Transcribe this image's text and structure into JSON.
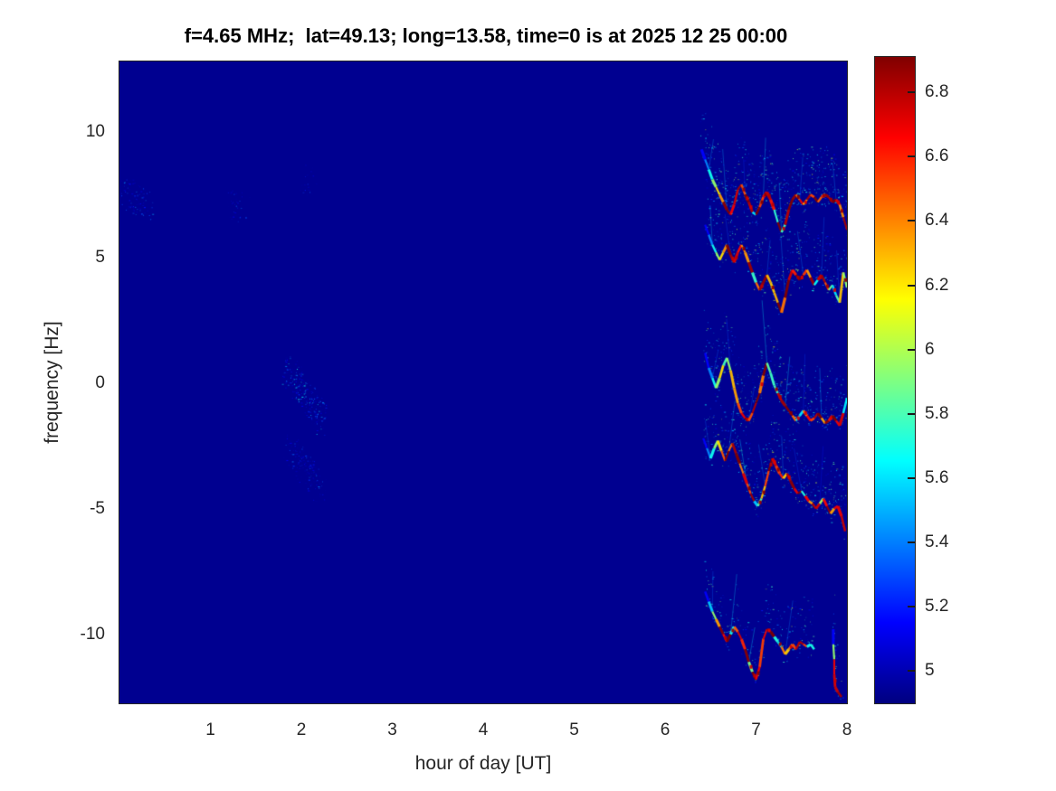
{
  "chart_data": {
    "type": "heatmap",
    "title": "f=4.65 MHz;  lat=49.13; long=13.58, time=0 is at 2025 12 25 00:00",
    "xlabel": "hour of day [UT]",
    "ylabel": "frequency [Hz]",
    "xlim": [
      0,
      8
    ],
    "ylim": [
      -12.75,
      12.8
    ],
    "x_ticks": [
      "1",
      "2",
      "3",
      "4",
      "5",
      "6",
      "7",
      "8"
    ],
    "x_tick_values": [
      1,
      2,
      3,
      4,
      5,
      6,
      7,
      8
    ],
    "y_ticks": [
      "10",
      "5",
      "0",
      "-5",
      "-10"
    ],
    "y_tick_values": [
      10,
      5,
      0,
      -5,
      -10
    ],
    "grid": false,
    "colormap": "jet",
    "background_color": "#000090",
    "background_value": 4.9,
    "colorbar": {
      "position": "right",
      "range": [
        4.9,
        6.91
      ],
      "tick_labels": [
        "5",
        "5.2",
        "5.4",
        "5.6",
        "5.8",
        "6",
        "6.2",
        "6.4",
        "6.6",
        "6.8"
      ],
      "tick_values": [
        5,
        5.2,
        5.4,
        5.6,
        5.8,
        6,
        6.2,
        6.4,
        6.6,
        6.8
      ]
    },
    "traces": [
      {
        "name": "doppler-trace-plus8hz",
        "center_hz": 7.4,
        "halo_density": 16,
        "core_value_range": [
          6.2,
          6.95
        ],
        "points": [
          [
            6.4,
            9.3
          ],
          [
            6.44,
            8.9
          ],
          [
            6.48,
            8.5
          ],
          [
            6.52,
            8.1
          ],
          [
            6.56,
            7.8
          ],
          [
            6.6,
            7.5
          ],
          [
            6.64,
            7.2
          ],
          [
            6.68,
            6.9
          ],
          [
            6.72,
            6.7
          ],
          [
            6.76,
            7.1
          ],
          [
            6.8,
            7.7
          ],
          [
            6.84,
            7.9
          ],
          [
            6.88,
            7.5
          ],
          [
            6.92,
            7.2
          ],
          [
            6.96,
            6.8
          ],
          [
            7.0,
            6.7
          ],
          [
            7.04,
            7.0
          ],
          [
            7.08,
            7.4
          ],
          [
            7.12,
            7.6
          ],
          [
            7.16,
            7.3
          ],
          [
            7.2,
            6.9
          ],
          [
            7.24,
            6.4
          ],
          [
            7.28,
            6.0
          ],
          [
            7.32,
            6.3
          ],
          [
            7.36,
            6.9
          ],
          [
            7.4,
            7.3
          ],
          [
            7.44,
            7.5
          ],
          [
            7.48,
            7.3
          ],
          [
            7.52,
            7.1
          ],
          [
            7.56,
            7.3
          ],
          [
            7.6,
            7.5
          ],
          [
            7.64,
            7.4
          ],
          [
            7.68,
            7.2
          ],
          [
            7.72,
            7.4
          ],
          [
            7.76,
            7.5
          ],
          [
            7.8,
            7.4
          ],
          [
            7.84,
            7.2
          ],
          [
            7.88,
            7.3
          ],
          [
            7.92,
            7.1
          ],
          [
            7.96,
            6.6
          ],
          [
            8.0,
            6.1
          ]
        ]
      },
      {
        "name": "doppler-trace-plus4hz",
        "center_hz": 4.3,
        "halo_density": 12,
        "core_value_range": [
          6.2,
          6.95
        ],
        "points": [
          [
            6.44,
            6.3
          ],
          [
            6.48,
            5.9
          ],
          [
            6.52,
            5.5
          ],
          [
            6.56,
            5.2
          ],
          [
            6.6,
            4.9
          ],
          [
            6.64,
            5.2
          ],
          [
            6.68,
            5.5
          ],
          [
            6.72,
            5.1
          ],
          [
            6.76,
            4.8
          ],
          [
            6.8,
            5.2
          ],
          [
            6.84,
            5.5
          ],
          [
            6.88,
            5.2
          ],
          [
            6.92,
            4.8
          ],
          [
            6.96,
            4.4
          ],
          [
            7.0,
            4.0
          ],
          [
            7.04,
            3.7
          ],
          [
            7.08,
            4.0
          ],
          [
            7.12,
            4.3
          ],
          [
            7.16,
            4.0
          ],
          [
            7.2,
            3.6
          ],
          [
            7.24,
            3.2
          ],
          [
            7.28,
            2.8
          ],
          [
            7.32,
            3.4
          ],
          [
            7.36,
            4.1
          ],
          [
            7.4,
            4.5
          ],
          [
            7.44,
            4.3
          ],
          [
            7.48,
            4.1
          ],
          [
            7.52,
            4.3
          ],
          [
            7.56,
            4.5
          ],
          [
            7.6,
            4.2
          ],
          [
            7.64,
            3.9
          ],
          [
            7.68,
            4.1
          ],
          [
            7.72,
            4.3
          ],
          [
            7.76,
            4.0
          ],
          [
            7.8,
            3.7
          ],
          [
            7.84,
            3.9
          ],
          [
            7.88,
            3.5
          ],
          [
            7.92,
            3.2
          ],
          [
            7.96,
            4.4
          ],
          [
            8.0,
            3.8
          ]
        ]
      },
      {
        "name": "doppler-trace-0hz",
        "center_hz": -0.6,
        "halo_density": 14,
        "core_value_range": [
          6.2,
          6.95
        ],
        "points": [
          [
            6.44,
            1.2
          ],
          [
            6.48,
            0.6
          ],
          [
            6.52,
            0.2
          ],
          [
            6.56,
            -0.2
          ],
          [
            6.6,
            0.2
          ],
          [
            6.64,
            0.7
          ],
          [
            6.68,
            1.0
          ],
          [
            6.72,
            0.5
          ],
          [
            6.76,
            -0.2
          ],
          [
            6.8,
            -0.8
          ],
          [
            6.84,
            -1.2
          ],
          [
            6.88,
            -1.4
          ],
          [
            6.92,
            -1.5
          ],
          [
            6.96,
            -1.2
          ],
          [
            7.0,
            -0.8
          ],
          [
            7.04,
            -0.4
          ],
          [
            7.08,
            0.3
          ],
          [
            7.12,
            0.8
          ],
          [
            7.16,
            0.4
          ],
          [
            7.2,
            -0.1
          ],
          [
            7.24,
            -0.4
          ],
          [
            7.28,
            -0.7
          ],
          [
            7.32,
            -0.9
          ],
          [
            7.36,
            -1.1
          ],
          [
            7.4,
            -1.3
          ],
          [
            7.44,
            -1.5
          ],
          [
            7.48,
            -1.3
          ],
          [
            7.52,
            -1.1
          ],
          [
            7.56,
            -1.3
          ],
          [
            7.6,
            -1.5
          ],
          [
            7.64,
            -1.4
          ],
          [
            7.68,
            -1.2
          ],
          [
            7.72,
            -1.4
          ],
          [
            7.76,
            -1.6
          ],
          [
            7.8,
            -1.5
          ],
          [
            7.84,
            -1.3
          ],
          [
            7.88,
            -1.5
          ],
          [
            7.92,
            -1.7
          ],
          [
            7.96,
            -1.2
          ],
          [
            8.0,
            -0.6
          ]
        ]
      },
      {
        "name": "doppler-trace-minus4hz",
        "center_hz": -3.9,
        "halo_density": 14,
        "core_value_range": [
          6.2,
          6.95
        ],
        "points": [
          [
            6.42,
            -2.2
          ],
          [
            6.46,
            -2.6
          ],
          [
            6.5,
            -3.0
          ],
          [
            6.54,
            -2.6
          ],
          [
            6.58,
            -2.3
          ],
          [
            6.62,
            -2.7
          ],
          [
            6.66,
            -3.1
          ],
          [
            6.7,
            -2.7
          ],
          [
            6.74,
            -2.4
          ],
          [
            6.78,
            -2.8
          ],
          [
            6.82,
            -3.2
          ],
          [
            6.86,
            -3.6
          ],
          [
            6.9,
            -4.0
          ],
          [
            6.94,
            -4.4
          ],
          [
            6.98,
            -4.7
          ],
          [
            7.02,
            -4.9
          ],
          [
            7.06,
            -4.6
          ],
          [
            7.1,
            -4.1
          ],
          [
            7.14,
            -3.5
          ],
          [
            7.18,
            -3.0
          ],
          [
            7.22,
            -3.3
          ],
          [
            7.26,
            -3.6
          ],
          [
            7.3,
            -3.8
          ],
          [
            7.34,
            -3.6
          ],
          [
            7.38,
            -3.9
          ],
          [
            7.42,
            -4.2
          ],
          [
            7.46,
            -4.4
          ],
          [
            7.5,
            -4.3
          ],
          [
            7.54,
            -4.5
          ],
          [
            7.58,
            -4.7
          ],
          [
            7.62,
            -4.8
          ],
          [
            7.66,
            -5.0
          ],
          [
            7.7,
            -4.8
          ],
          [
            7.74,
            -4.6
          ],
          [
            7.78,
            -4.9
          ],
          [
            7.82,
            -5.2
          ],
          [
            7.86,
            -5.0
          ],
          [
            7.9,
            -4.9
          ],
          [
            7.94,
            -5.3
          ],
          [
            7.98,
            -5.9
          ]
        ]
      },
      {
        "name": "doppler-trace-minus10hz",
        "center_hz": -10.3,
        "halo_density": 8,
        "core_value_range": [
          6.2,
          6.95
        ],
        "points": [
          [
            6.44,
            -8.3
          ],
          [
            6.48,
            -8.7
          ],
          [
            6.52,
            -9.1
          ],
          [
            6.56,
            -9.4
          ],
          [
            6.6,
            -9.7
          ],
          [
            6.64,
            -10.0
          ],
          [
            6.68,
            -10.3
          ],
          [
            6.72,
            -10.0
          ],
          [
            6.76,
            -9.7
          ],
          [
            6.8,
            -9.9
          ],
          [
            6.84,
            -10.2
          ],
          [
            6.88,
            -10.6
          ],
          [
            6.92,
            -11.1
          ],
          [
            6.96,
            -11.5
          ],
          [
            7.0,
            -11.8
          ],
          [
            7.04,
            -11.3
          ],
          [
            7.08,
            -10.2
          ],
          [
            7.12,
            -9.8
          ],
          [
            7.16,
            -9.9
          ],
          [
            7.2,
            -10.1
          ],
          [
            7.24,
            -10.3
          ],
          [
            7.28,
            -10.5
          ],
          [
            7.32,
            -10.8
          ],
          [
            7.36,
            -10.6
          ],
          [
            7.4,
            -10.4
          ],
          [
            7.44,
            -10.6
          ],
          [
            7.48,
            -10.3
          ],
          [
            7.52,
            -10.4
          ],
          [
            7.56,
            -10.5
          ],
          [
            7.6,
            -10.4
          ],
          [
            7.64,
            -10.6
          ]
        ]
      },
      {
        "name": "doppler-trace-minus11hz-streak",
        "center_hz": -11.2,
        "halo_density": 5,
        "core_value_range": [
          6.2,
          6.95
        ],
        "points": [
          [
            7.85,
            -9.8
          ],
          [
            7.85,
            -10.4
          ],
          [
            7.86,
            -11.0
          ],
          [
            7.86,
            -11.6
          ],
          [
            7.87,
            -12.1
          ],
          [
            7.9,
            -12.3
          ],
          [
            7.94,
            -12.5
          ]
        ]
      }
    ],
    "faint_patches": [
      {
        "name": "speckle-hour2-upper",
        "from": [
          1.83,
          0.7
        ],
        "to": [
          2.24,
          -1.5
        ],
        "n": 300,
        "value_range": [
          4.95,
          5.7
        ]
      },
      {
        "name": "speckle-hour2-lower",
        "from": [
          1.86,
          -2.5
        ],
        "to": [
          2.22,
          -4.2
        ],
        "n": 170,
        "value_range": [
          4.95,
          5.45
        ]
      },
      {
        "name": "speckle-hour0-7hz",
        "from": [
          0.02,
          7.6
        ],
        "to": [
          0.32,
          7.1
        ],
        "n": 110,
        "value_range": [
          4.95,
          5.55
        ]
      },
      {
        "name": "speckle-hour1-7hz",
        "from": [
          1.18,
          7.3
        ],
        "to": [
          1.36,
          6.9
        ],
        "n": 45,
        "value_range": [
          4.95,
          5.4
        ]
      },
      {
        "name": "speckle-hour2-8hz",
        "from": [
          2.02,
          8.2
        ],
        "to": [
          2.12,
          7.8
        ],
        "n": 25,
        "value_range": [
          4.95,
          5.35
        ]
      }
    ]
  }
}
